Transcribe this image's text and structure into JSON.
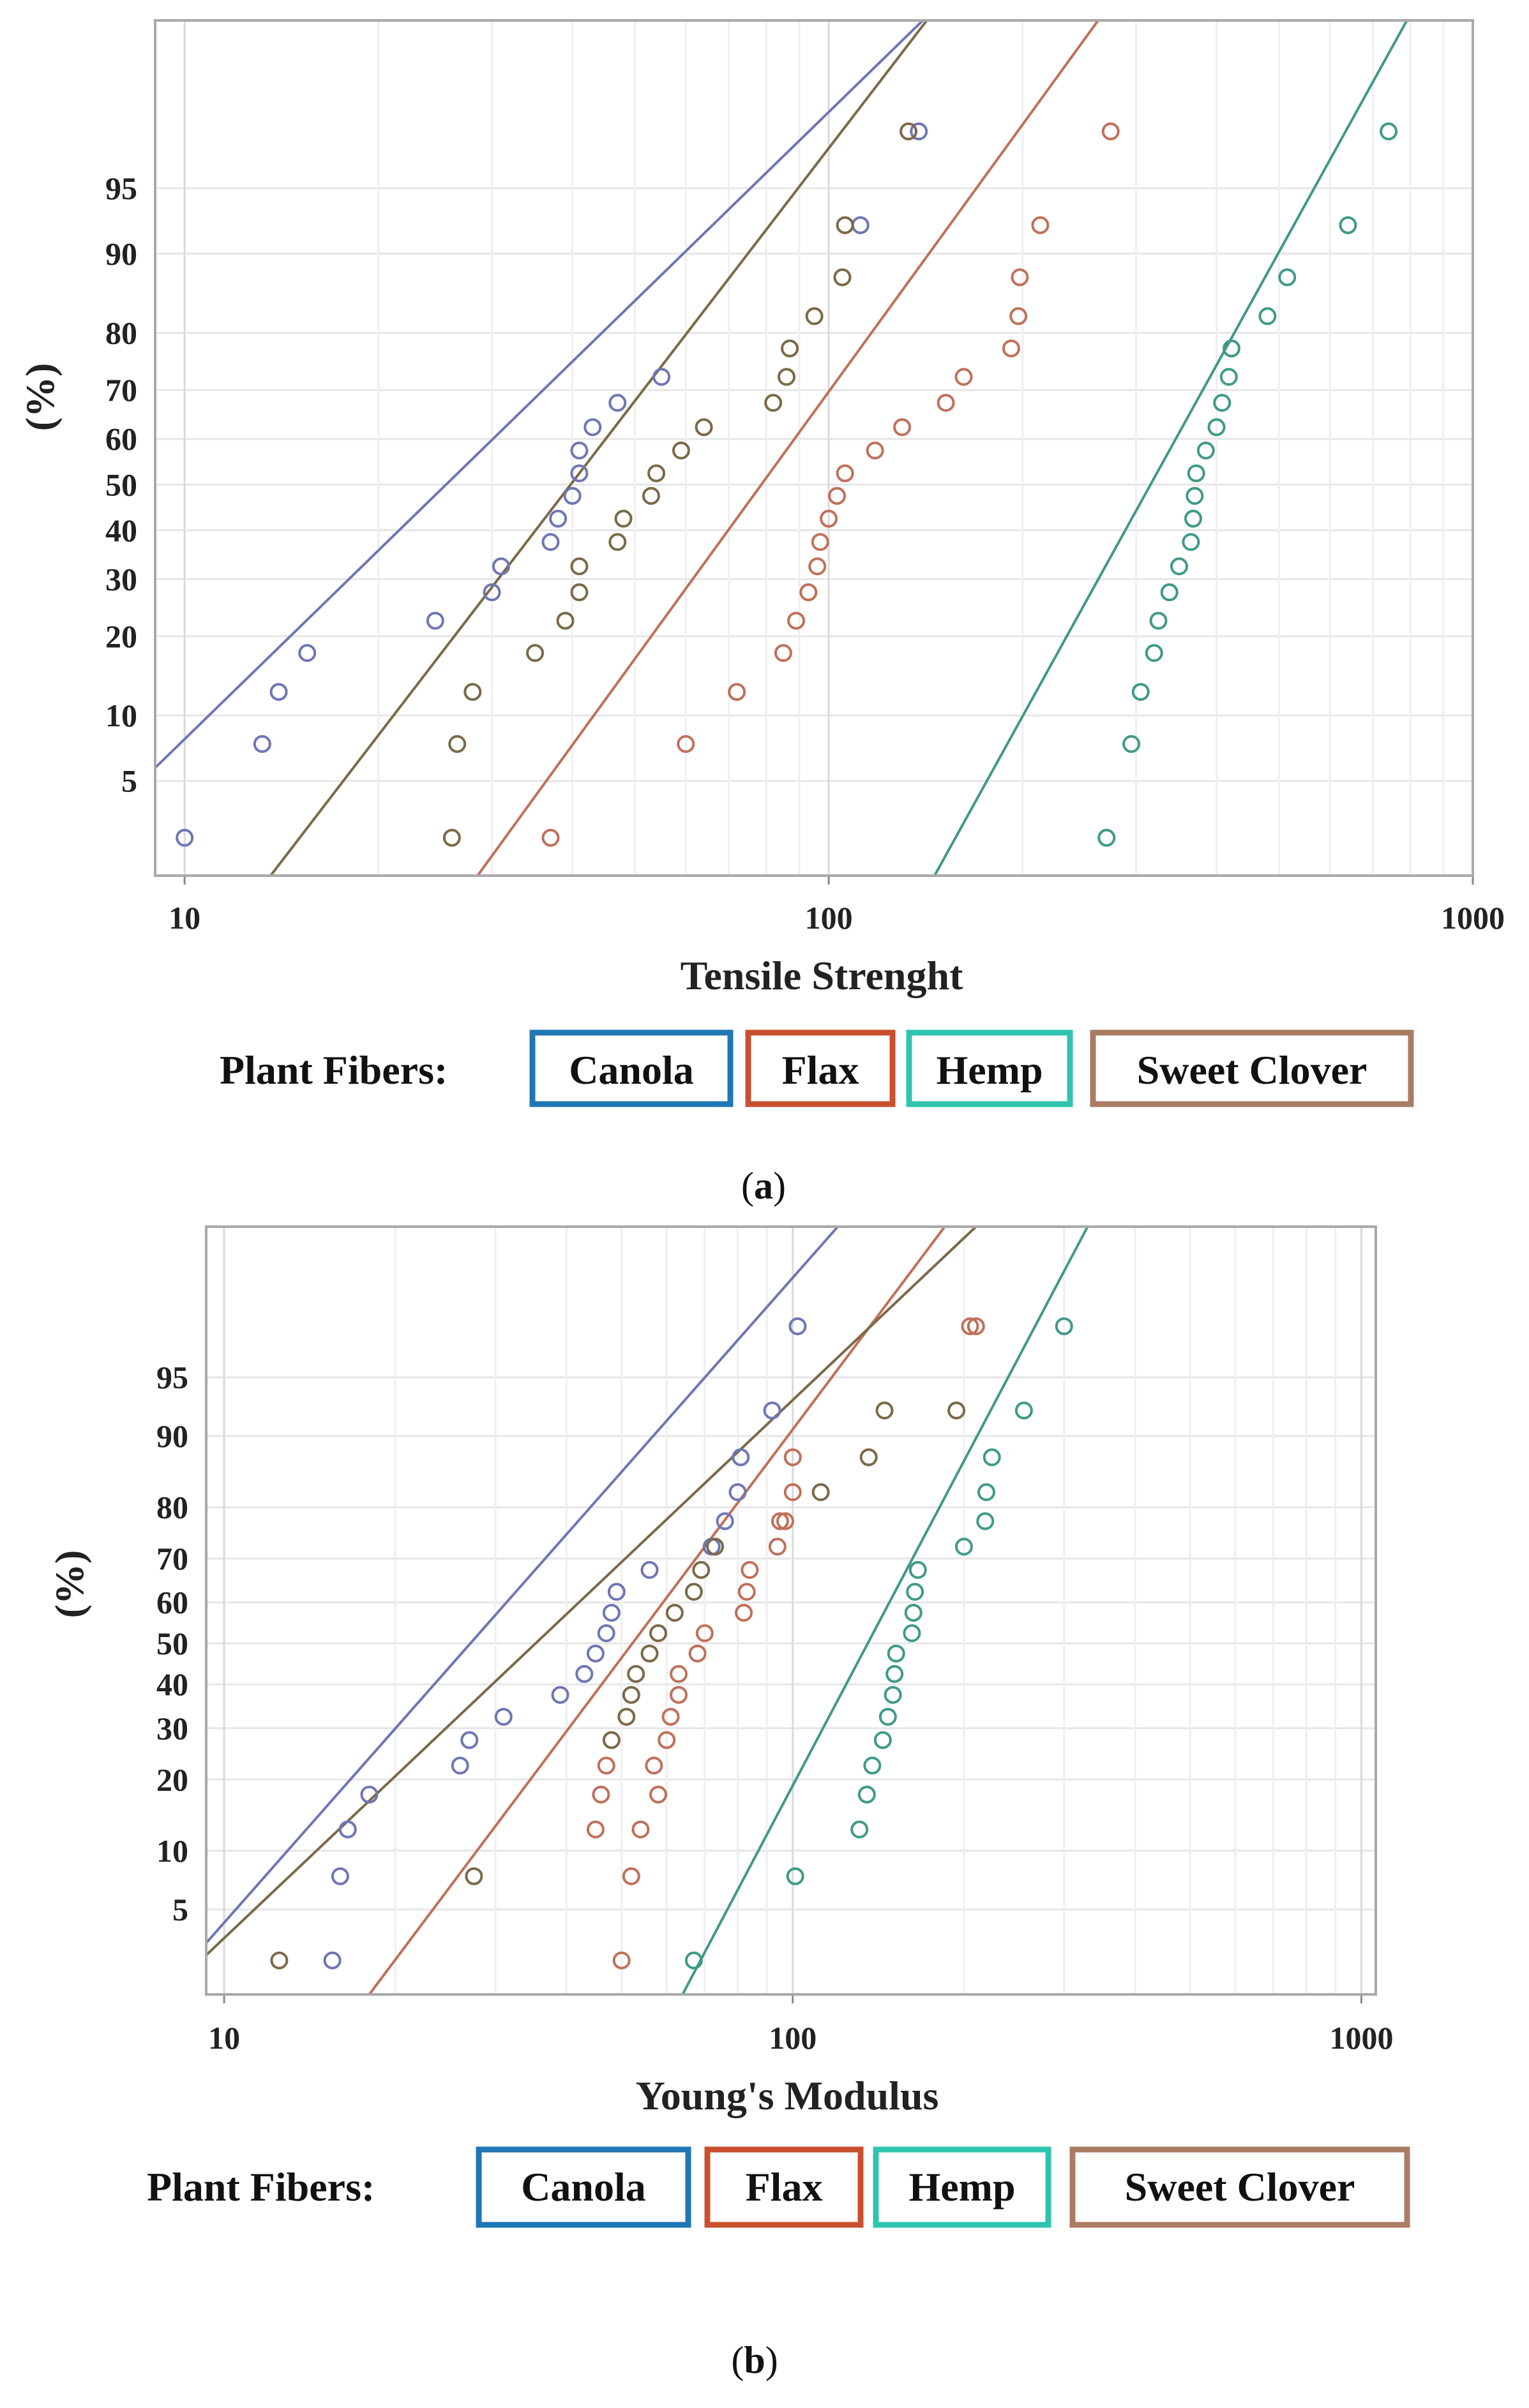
{
  "chart_data": [
    {
      "type": "scatter",
      "subtype": "probability-plot",
      "caption_open": "(",
      "caption": "a",
      "caption_close": ")",
      "xlabel": "Tensile Strenght",
      "ylabel": "(%)",
      "xscale": "log",
      "xlim": [
        9,
        1000
      ],
      "ylim": [
        1.5,
        99.5
      ],
      "xticks": [
        10,
        100,
        1000
      ],
      "xtick_labels": [
        "10",
        "100",
        "1000"
      ],
      "yticks": [
        5,
        10,
        20,
        30,
        40,
        50,
        60,
        70,
        80,
        90,
        95
      ],
      "ytick_labels": [
        "5",
        "10",
        "20",
        "30",
        "40",
        "50",
        "60",
        "70",
        "80",
        "90",
        "95"
      ],
      "legend_title": "Plant Fibers:",
      "series": [
        {
          "name": "Canola",
          "marker_color": "#6f76b4",
          "legend_color": "#1f77b4",
          "points": [
            [
              10,
              2.5
            ],
            [
              13.2,
              7.5
            ],
            [
              14,
              12.5
            ],
            [
              15.5,
              17.5
            ],
            [
              24.5,
              22.5
            ],
            [
              30,
              27.5
            ],
            [
              31,
              32.5
            ],
            [
              37,
              37.5
            ],
            [
              38,
              42.5
            ],
            [
              40,
              47.5
            ],
            [
              41,
              52.5
            ],
            [
              41,
              57.5
            ],
            [
              43,
              62.5
            ],
            [
              47,
              67.5
            ],
            [
              55,
              72.5
            ],
            [
              112,
              92.5
            ],
            [
              138,
              97.5
            ]
          ],
          "fit": [
            [
              9,
              5.8
            ],
            [
              140,
              99.5
            ]
          ]
        },
        {
          "name": "Flax",
          "marker_color": "#c0705a",
          "legend_color": "#c8502f",
          "points": [
            [
              37,
              2.5
            ],
            [
              60,
              7.5
            ],
            [
              72,
              12.5
            ],
            [
              85,
              17.5
            ],
            [
              89,
              22.5
            ],
            [
              93,
              27.5
            ],
            [
              96,
              32.5
            ],
            [
              97,
              37.5
            ],
            [
              100,
              42.5
            ],
            [
              103,
              47.5
            ],
            [
              106,
              52.5
            ],
            [
              118,
              57.5
            ],
            [
              130,
              62.5
            ],
            [
              152,
              67.5
            ],
            [
              162,
              72.5
            ],
            [
              192,
              77.5
            ],
            [
              197,
              82.5
            ],
            [
              198,
              87.5
            ],
            [
              213,
              92.5
            ],
            [
              274,
              97.5
            ]
          ],
          "fit": [
            [
              28.5,
              1.5
            ],
            [
              262,
              99.5
            ]
          ]
        },
        {
          "name": "Hemp",
          "marker_color": "#3f9a88",
          "legend_color": "#2ec4b0",
          "points": [
            [
              270,
              2.5
            ],
            [
              295,
              7.5
            ],
            [
              305,
              12.5
            ],
            [
              320,
              17.5
            ],
            [
              325,
              22.5
            ],
            [
              338,
              27.5
            ],
            [
              350,
              32.5
            ],
            [
              365,
              37.5
            ],
            [
              368,
              42.5
            ],
            [
              370,
              47.5
            ],
            [
              372,
              52.5
            ],
            [
              385,
              57.5
            ],
            [
              400,
              62.5
            ],
            [
              408,
              67.5
            ],
            [
              418,
              72.5
            ],
            [
              422,
              77.5
            ],
            [
              480,
              82.5
            ],
            [
              515,
              87.5
            ],
            [
              640,
              92.5
            ],
            [
              740,
              97.5
            ]
          ],
          "fit": [
            [
              146,
              1.5
            ],
            [
              790,
              99.5
            ]
          ]
        },
        {
          "name": "Sweet Clover",
          "marker_color": "#7a6a48",
          "legend_color": "#a97c63",
          "points": [
            [
              26,
              2.5
            ],
            [
              26.5,
              7.5
            ],
            [
              28,
              12.5
            ],
            [
              35,
              17.5
            ],
            [
              39,
              22.5
            ],
            [
              41,
              27.5
            ],
            [
              41,
              32.5
            ],
            [
              47,
              37.5
            ],
            [
              48,
              42.5
            ],
            [
              53,
              47.5
            ],
            [
              54,
              52.5
            ],
            [
              59,
              57.5
            ],
            [
              64,
              62.5
            ],
            [
              82,
              67.5
            ],
            [
              86,
              72.5
            ],
            [
              87,
              77.5
            ],
            [
              95,
              82.5
            ],
            [
              105,
              87.5
            ],
            [
              106,
              92.5
            ],
            [
              133,
              97.5
            ]
          ],
          "fit": [
            [
              13.6,
              1.5
            ],
            [
              142,
              99.5
            ]
          ]
        }
      ]
    },
    {
      "type": "scatter",
      "subtype": "probability-plot",
      "caption_open": "(",
      "caption": "b",
      "caption_close": ")",
      "xlabel": "Young's Modulus",
      "ylabel": "(%)",
      "xscale": "log",
      "xlim": [
        9.3,
        1060
      ],
      "ylim": [
        1.5,
        99.5
      ],
      "xticks": [
        10,
        100,
        1000
      ],
      "xtick_labels": [
        "10",
        "100",
        "1000"
      ],
      "yticks": [
        5,
        10,
        20,
        30,
        40,
        50,
        60,
        70,
        80,
        90,
        95
      ],
      "ytick_labels": [
        "5",
        "10",
        "20",
        "30",
        "40",
        "50",
        "60",
        "70",
        "80",
        "90",
        "95"
      ],
      "legend_title": "Plant Fibers:",
      "series": [
        {
          "name": "Canola",
          "marker_color": "#6f76b4",
          "legend_color": "#1f77b4",
          "points": [
            [
              15.5,
              2.5
            ],
            [
              16,
              7.5
            ],
            [
              16.5,
              12.5
            ],
            [
              18,
              17.5
            ],
            [
              26,
              22.5
            ],
            [
              27,
              27.5
            ],
            [
              31,
              32.5
            ],
            [
              39,
              37.5
            ],
            [
              43,
              42.5
            ],
            [
              45,
              47.5
            ],
            [
              47,
              52.5
            ],
            [
              48,
              57.5
            ],
            [
              49,
              62.5
            ],
            [
              56,
              67.5
            ],
            [
              72,
              72.5
            ],
            [
              76,
              77.5
            ],
            [
              80,
              82.5
            ],
            [
              81,
              87.5
            ],
            [
              92,
              92.5
            ],
            [
              102,
              97.5
            ]
          ],
          "fit": [
            [
              9.3,
              3.2
            ],
            [
              120,
              99.5
            ]
          ]
        },
        {
          "name": "Flax",
          "marker_color": "#c0705a",
          "legend_color": "#c8502f",
          "points": [
            [
              50,
              2.5
            ],
            [
              52,
              7.5
            ],
            [
              45,
              12.5
            ],
            [
              54,
              12.5
            ],
            [
              46,
              17.5
            ],
            [
              58,
              17.5
            ],
            [
              47,
              22.5
            ],
            [
              57,
              22.5
            ],
            [
              60,
              27.5
            ],
            [
              61,
              32.5
            ],
            [
              63,
              37.5
            ],
            [
              63,
              42.5
            ],
            [
              68,
              47.5
            ],
            [
              70,
              52.5
            ],
            [
              82,
              57.5
            ],
            [
              83,
              62.5
            ],
            [
              84,
              67.5
            ],
            [
              94,
              72.5
            ],
            [
              95,
              77.5
            ],
            [
              97,
              77.5
            ],
            [
              100,
              82.5
            ],
            [
              100,
              87.5
            ],
            [
              205,
              97.5
            ],
            [
              210,
              97.5
            ]
          ],
          "fit": [
            [
              18,
              1.5
            ],
            [
              185,
              99.5
            ]
          ]
        },
        {
          "name": "Hemp",
          "marker_color": "#3f9a88",
          "legend_color": "#2ec4b0",
          "points": [
            [
              67,
              2.5
            ],
            [
              101,
              7.5
            ],
            [
              131,
              12.5
            ],
            [
              135,
              17.5
            ],
            [
              138,
              22.5
            ],
            [
              144,
              27.5
            ],
            [
              147,
              32.5
            ],
            [
              150,
              37.5
            ],
            [
              151,
              42.5
            ],
            [
              152,
              47.5
            ],
            [
              162,
              52.5
            ],
            [
              163,
              57.5
            ],
            [
              164,
              62.5
            ],
            [
              166,
              67.5
            ],
            [
              200,
              72.5
            ],
            [
              218,
              77.5
            ],
            [
              219,
              82.5
            ],
            [
              224,
              87.5
            ],
            [
              255,
              92.5
            ],
            [
              300,
              97.5
            ]
          ],
          "fit": [
            [
              64,
              1.5
            ],
            [
              330,
              99.5
            ]
          ]
        },
        {
          "name": "Sweet Clover",
          "marker_color": "#7a6a48",
          "legend_color": "#a97c63",
          "points": [
            [
              12.5,
              2.5
            ],
            [
              27.5,
              7.5
            ],
            [
              48,
              27.5
            ],
            [
              51,
              32.5
            ],
            [
              52,
              37.5
            ],
            [
              53,
              42.5
            ],
            [
              56,
              47.5
            ],
            [
              58,
              52.5
            ],
            [
              62,
              57.5
            ],
            [
              67,
              62.5
            ],
            [
              69,
              67.5
            ],
            [
              73,
              72.5
            ],
            [
              112,
              82.5
            ],
            [
              136,
              87.5
            ],
            [
              145,
              92.5
            ],
            [
              194,
              92.5
            ]
          ],
          "fit": [
            [
              9.3,
              2.7
            ],
            [
              210,
              99.5
            ]
          ]
        }
      ]
    }
  ]
}
